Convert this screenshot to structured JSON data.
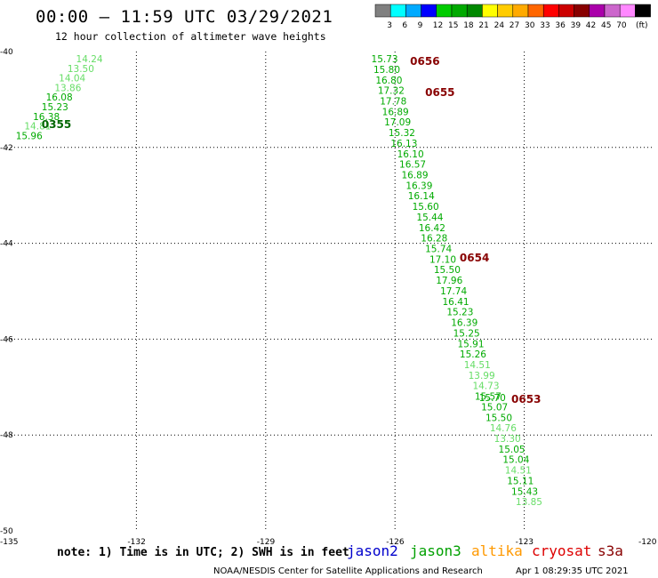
{
  "title": "00:00 – 11:59 UTC 03/29/2021",
  "subtitle": "12 hour collection of altimeter wave heights",
  "note": "note: 1) Time is in UTC; 2) SWH is in feet",
  "credit": "NOAA/NESDIS Center for Satellite Applications and Research",
  "timestamp": "Apr  1 08:29:35 UTC 2021",
  "satellites": [
    {
      "name": "jason2",
      "color": "#0000cc"
    },
    {
      "name": "jason3",
      "color": "#00a000"
    },
    {
      "name": "altika",
      "color": "#ff9900"
    },
    {
      "name": "cryosat",
      "color": "#dd0000"
    },
    {
      "name": "s3a",
      "color": "#880000"
    }
  ],
  "colorbar": {
    "labels": [
      "3",
      "6",
      "9",
      "12",
      "15",
      "18",
      "21",
      "24",
      "27",
      "30",
      "33",
      "36",
      "39",
      "42",
      "45",
      "70"
    ],
    "unit": "(ft)",
    "colors": [
      "#808080",
      "#00ffff",
      "#00aaff",
      "#0000ff",
      "#00cc00",
      "#00aa00",
      "#008800",
      "#ffff00",
      "#ffcc00",
      "#ffaa00",
      "#ff6600",
      "#ff0000",
      "#cc0000",
      "#880000",
      "#aa00aa",
      "#cc66cc",
      "#ff88ff",
      "#000000"
    ]
  },
  "chart_data": {
    "type": "scatter",
    "title": "00:00 – 11:59 UTC 03/29/2021",
    "subtitle": "12 hour collection of altimeter wave heights",
    "xlim": [
      -135,
      -120
    ],
    "ylim": [
      -50,
      -40
    ],
    "x_ticks": [
      "-135",
      "-132",
      "-129",
      "-126",
      "-123",
      "-120"
    ],
    "y_ticks": [
      "-40",
      "-42",
      "-44",
      "-46",
      "-48",
      "-50"
    ],
    "grid": true,
    "tracks": [
      {
        "time_label": "0355",
        "label_color": "#006600",
        "label_pos": [
          -134.2,
          -41.52
        ],
        "points": [
          {
            "lon": -133.4,
            "lat": -40.15,
            "swh": "14.24",
            "color": "#66dd66"
          },
          {
            "lon": -133.6,
            "lat": -40.35,
            "swh": "13.50",
            "color": "#66dd66"
          },
          {
            "lon": -133.8,
            "lat": -40.55,
            "swh": "14.04",
            "color": "#66dd66"
          },
          {
            "lon": -133.9,
            "lat": -40.75,
            "swh": "13.86",
            "color": "#66dd66"
          },
          {
            "lon": -134.1,
            "lat": -40.95,
            "swh": "16.08",
            "color": "#00aa00"
          },
          {
            "lon": -134.2,
            "lat": -41.15,
            "swh": "15.23",
            "color": "#00aa00"
          },
          {
            "lon": -134.4,
            "lat": -41.35,
            "swh": "16.38",
            "color": "#00aa00"
          },
          {
            "lon": -134.6,
            "lat": -41.55,
            "swh": "14.81",
            "color": "#66dd66"
          },
          {
            "lon": -134.8,
            "lat": -41.75,
            "swh": "15.96",
            "color": "#00aa00"
          }
        ]
      },
      {
        "time_label": "0656",
        "label_color": "#880000",
        "label_pos": [
          -125.65,
          -40.2
        ],
        "points": [
          {
            "lon": -126.55,
            "lat": -40.15,
            "swh": "15.73",
            "color": "#00aa00"
          },
          {
            "lon": -126.5,
            "lat": -40.37,
            "swh": "15.80",
            "color": "#00aa00"
          },
          {
            "lon": -126.45,
            "lat": -40.59,
            "swh": "16.80",
            "color": "#00aa00"
          }
        ]
      },
      {
        "time_label": "0655",
        "label_color": "#880000",
        "label_pos": [
          -125.3,
          -40.85
        ],
        "points": [
          {
            "lon": -126.4,
            "lat": -40.81,
            "swh": "17.32",
            "color": "#00aa00"
          },
          {
            "lon": -126.35,
            "lat": -41.03,
            "swh": "17.78",
            "color": "#00aa00"
          },
          {
            "lon": -126.3,
            "lat": -41.25,
            "swh": "16.89",
            "color": "#00aa00"
          },
          {
            "lon": -126.25,
            "lat": -41.47,
            "swh": "17.09",
            "color": "#00aa00"
          },
          {
            "lon": -126.15,
            "lat": -41.69,
            "swh": "15.32",
            "color": "#00aa00"
          },
          {
            "lon": -126.1,
            "lat": -41.91,
            "swh": "16.13",
            "color": "#00aa00"
          },
          {
            "lon": -125.95,
            "lat": -42.13,
            "swh": "16.10",
            "color": "#00aa00"
          },
          {
            "lon": -125.9,
            "lat": -42.35,
            "swh": "16.57",
            "color": "#00aa00"
          },
          {
            "lon": -125.85,
            "lat": -42.57,
            "swh": "16.89",
            "color": "#00aa00"
          },
          {
            "lon": -125.75,
            "lat": -42.79,
            "swh": "16.39",
            "color": "#00aa00"
          },
          {
            "lon": -125.7,
            "lat": -43.01,
            "swh": "16.14",
            "color": "#00aa00"
          },
          {
            "lon": -125.6,
            "lat": -43.23,
            "swh": "15.60",
            "color": "#00aa00"
          },
          {
            "lon": -125.5,
            "lat": -43.45,
            "swh": "15.44",
            "color": "#00aa00"
          },
          {
            "lon": -125.45,
            "lat": -43.67,
            "swh": "16.42",
            "color": "#00aa00"
          },
          {
            "lon": -125.4,
            "lat": -43.89,
            "swh": "16.28",
            "color": "#00aa00"
          }
        ]
      },
      {
        "time_label": "0654",
        "label_color": "#880000",
        "label_pos": [
          -124.5,
          -44.3
        ],
        "points": [
          {
            "lon": -125.3,
            "lat": -44.11,
            "swh": "15.74",
            "color": "#00aa00"
          },
          {
            "lon": -125.2,
            "lat": -44.33,
            "swh": "17.10",
            "color": "#00aa00"
          },
          {
            "lon": -125.1,
            "lat": -44.55,
            "swh": "15.50",
            "color": "#00aa00"
          },
          {
            "lon": -125.05,
            "lat": -44.77,
            "swh": "17.96",
            "color": "#00aa00"
          },
          {
            "lon": -124.95,
            "lat": -44.99,
            "swh": "17.74",
            "color": "#00aa00"
          },
          {
            "lon": -124.9,
            "lat": -45.21,
            "swh": "16.41",
            "color": "#00aa00"
          },
          {
            "lon": -124.8,
            "lat": -45.43,
            "swh": "15.23",
            "color": "#00aa00"
          },
          {
            "lon": -124.7,
            "lat": -45.65,
            "swh": "16.39",
            "color": "#00aa00"
          },
          {
            "lon": -124.65,
            "lat": -45.87,
            "swh": "15.25",
            "color": "#00aa00"
          },
          {
            "lon": -124.55,
            "lat": -46.09,
            "swh": "15.91",
            "color": "#00aa00"
          },
          {
            "lon": -124.5,
            "lat": -46.31,
            "swh": "15.26",
            "color": "#00aa00"
          },
          {
            "lon": -124.4,
            "lat": -46.53,
            "swh": "14.51",
            "color": "#66dd66"
          },
          {
            "lon": -124.3,
            "lat": -46.75,
            "swh": "13.99",
            "color": "#66dd66"
          },
          {
            "lon": -124.2,
            "lat": -46.97,
            "swh": "14.73",
            "color": "#66dd66"
          },
          {
            "lon": -124.15,
            "lat": -47.19,
            "swh": "15.57",
            "color": "#00aa00"
          },
          {
            "lon": -124.05,
            "lat": -47.22,
            "swh": "15.70",
            "color": "#00aa00"
          }
        ]
      },
      {
        "time_label": "0653",
        "label_color": "#880000",
        "label_pos": [
          -123.3,
          -47.25
        ],
        "points": [
          {
            "lon": -124.0,
            "lat": -47.41,
            "swh": "15.07",
            "color": "#00aa00"
          },
          {
            "lon": -123.9,
            "lat": -47.63,
            "swh": "15.50",
            "color": "#00aa00"
          },
          {
            "lon": -123.8,
            "lat": -47.85,
            "swh": "14.76",
            "color": "#66dd66"
          },
          {
            "lon": -123.7,
            "lat": -48.07,
            "swh": "13.30",
            "color": "#66dd66"
          },
          {
            "lon": -123.6,
            "lat": -48.29,
            "swh": "15.05",
            "color": "#00aa00"
          },
          {
            "lon": -123.5,
            "lat": -48.51,
            "swh": "15.04",
            "color": "#00aa00"
          },
          {
            "lon": -123.45,
            "lat": -48.73,
            "swh": "14.51",
            "color": "#66dd66"
          },
          {
            "lon": -123.4,
            "lat": -48.95,
            "swh": "15.11",
            "color": "#00aa00"
          },
          {
            "lon": -123.3,
            "lat": -49.17,
            "swh": "15.43",
            "color": "#00aa00"
          },
          {
            "lon": -123.2,
            "lat": -49.39,
            "swh": "13.85",
            "color": "#66dd66"
          }
        ]
      }
    ]
  }
}
